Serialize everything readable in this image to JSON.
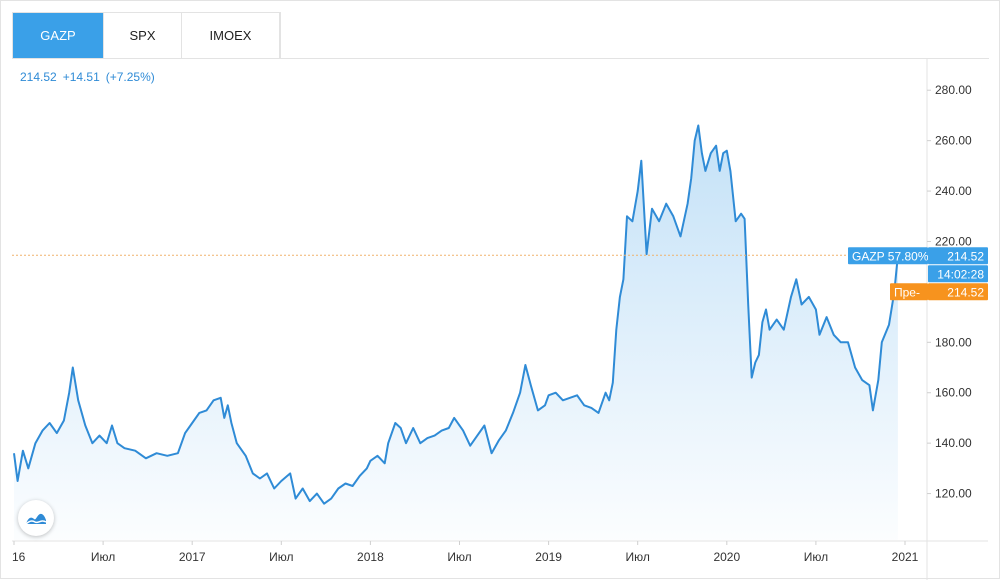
{
  "tabs": [
    {
      "label": "GAZP",
      "active": true
    },
    {
      "label": "SPX",
      "active": false
    },
    {
      "label": "IMOEX",
      "active": false
    }
  ],
  "header": {
    "price": "214.52",
    "change": "+14.51",
    "change_pct": "(+7.25%)"
  },
  "colors": {
    "accent": "#3aa0e8",
    "line": "#2f8bd6",
    "fill_top": "#b9dcf6",
    "orange": "#f7931e",
    "dotted_line": "#f0b26d"
  },
  "icons": {
    "logo": "tradingview-logo-icon"
  },
  "labels": {
    "series_badge": "GAZP 57.80%",
    "series_value": "214.52",
    "time_badge": "14:02:28",
    "pre_badge": "Пре-",
    "pre_value": "214.52"
  },
  "chart_data": {
    "type": "area",
    "title": "",
    "xlabel": "",
    "ylabel": "",
    "x_ticks": [
      "16",
      "Июл",
      "2017",
      "Июл",
      "2018",
      "Июл",
      "2019",
      "Июл",
      "2020",
      "Июл",
      "2021"
    ],
    "y_ticks": [
      "120.00",
      "140.00",
      "160.00",
      "180.00",
      "200.00",
      "220.00",
      "240.00",
      "260.00",
      "280.00"
    ],
    "ylim": [
      100,
      290
    ],
    "xlim": [
      "2016-01",
      "2021-01"
    ],
    "current_value": 214.52,
    "series": [
      {
        "values": [
          [
            2016.0,
            136
          ],
          [
            2016.02,
            125
          ],
          [
            2016.05,
            137
          ],
          [
            2016.08,
            130
          ],
          [
            2016.12,
            140
          ],
          [
            2016.16,
            145
          ],
          [
            2016.2,
            148
          ],
          [
            2016.24,
            144
          ],
          [
            2016.28,
            149
          ],
          [
            2016.31,
            160
          ],
          [
            2016.33,
            170
          ],
          [
            2016.36,
            157
          ],
          [
            2016.4,
            147
          ],
          [
            2016.44,
            140
          ],
          [
            2016.48,
            143
          ],
          [
            2016.52,
            140
          ],
          [
            2016.55,
            147
          ],
          [
            2016.58,
            140
          ],
          [
            2016.62,
            138
          ],
          [
            2016.68,
            137
          ],
          [
            2016.74,
            134
          ],
          [
            2016.8,
            136
          ],
          [
            2016.86,
            135
          ],
          [
            2016.92,
            136
          ],
          [
            2016.96,
            144
          ],
          [
            2017.0,
            148
          ],
          [
            2017.04,
            152
          ],
          [
            2017.08,
            153
          ],
          [
            2017.12,
            157
          ],
          [
            2017.16,
            158
          ],
          [
            2017.18,
            150
          ],
          [
            2017.2,
            155
          ],
          [
            2017.22,
            148
          ],
          [
            2017.25,
            140
          ],
          [
            2017.3,
            135
          ],
          [
            2017.34,
            128
          ],
          [
            2017.38,
            126
          ],
          [
            2017.42,
            128
          ],
          [
            2017.46,
            122
          ],
          [
            2017.5,
            125
          ],
          [
            2017.55,
            128
          ],
          [
            2017.58,
            118
          ],
          [
            2017.62,
            122
          ],
          [
            2017.66,
            117
          ],
          [
            2017.7,
            120
          ],
          [
            2017.74,
            116
          ],
          [
            2017.78,
            118
          ],
          [
            2017.82,
            122
          ],
          [
            2017.86,
            124
          ],
          [
            2017.9,
            123
          ],
          [
            2017.94,
            127
          ],
          [
            2017.98,
            130
          ],
          [
            2018.0,
            133
          ],
          [
            2018.04,
            135
          ],
          [
            2018.08,
            132
          ],
          [
            2018.1,
            140
          ],
          [
            2018.14,
            148
          ],
          [
            2018.17,
            146
          ],
          [
            2018.2,
            140
          ],
          [
            2018.24,
            146
          ],
          [
            2018.28,
            140
          ],
          [
            2018.32,
            142
          ],
          [
            2018.36,
            143
          ],
          [
            2018.4,
            145
          ],
          [
            2018.44,
            146
          ],
          [
            2018.47,
            150
          ],
          [
            2018.52,
            145
          ],
          [
            2018.56,
            139
          ],
          [
            2018.6,
            143
          ],
          [
            2018.64,
            147
          ],
          [
            2018.68,
            136
          ],
          [
            2018.72,
            141
          ],
          [
            2018.76,
            145
          ],
          [
            2018.8,
            152
          ],
          [
            2018.84,
            160
          ],
          [
            2018.87,
            171
          ],
          [
            2018.9,
            163
          ],
          [
            2018.94,
            153
          ],
          [
            2018.98,
            155
          ],
          [
            2019.0,
            159
          ],
          [
            2019.04,
            160
          ],
          [
            2019.08,
            157
          ],
          [
            2019.12,
            158
          ],
          [
            2019.16,
            159
          ],
          [
            2019.2,
            155
          ],
          [
            2019.24,
            154
          ],
          [
            2019.28,
            152
          ],
          [
            2019.32,
            160
          ],
          [
            2019.34,
            157
          ],
          [
            2019.36,
            164
          ],
          [
            2019.38,
            185
          ],
          [
            2019.4,
            198
          ],
          [
            2019.42,
            205
          ],
          [
            2019.44,
            230
          ],
          [
            2019.47,
            228
          ],
          [
            2019.5,
            240
          ],
          [
            2019.52,
            252
          ],
          [
            2019.55,
            215
          ],
          [
            2019.58,
            233
          ],
          [
            2019.62,
            228
          ],
          [
            2019.66,
            235
          ],
          [
            2019.7,
            230
          ],
          [
            2019.74,
            222
          ],
          [
            2019.78,
            235
          ],
          [
            2019.8,
            245
          ],
          [
            2019.82,
            260
          ],
          [
            2019.84,
            266
          ],
          [
            2019.86,
            255
          ],
          [
            2019.88,
            248
          ],
          [
            2019.91,
            255
          ],
          [
            2019.94,
            258
          ],
          [
            2019.96,
            248
          ],
          [
            2019.98,
            255
          ],
          [
            2020.0,
            256
          ],
          [
            2020.02,
            248
          ],
          [
            2020.05,
            228
          ],
          [
            2020.08,
            231
          ],
          [
            2020.1,
            229
          ],
          [
            2020.12,
            195
          ],
          [
            2020.14,
            166
          ],
          [
            2020.16,
            172
          ],
          [
            2020.18,
            175
          ],
          [
            2020.2,
            188
          ],
          [
            2020.22,
            193
          ],
          [
            2020.24,
            185
          ],
          [
            2020.28,
            189
          ],
          [
            2020.32,
            185
          ],
          [
            2020.36,
            198
          ],
          [
            2020.39,
            205
          ],
          [
            2020.42,
            195
          ],
          [
            2020.46,
            198
          ],
          [
            2020.5,
            193
          ],
          [
            2020.52,
            183
          ],
          [
            2020.56,
            190
          ],
          [
            2020.6,
            183
          ],
          [
            2020.64,
            180
          ],
          [
            2020.68,
            180
          ],
          [
            2020.72,
            170
          ],
          [
            2020.76,
            165
          ],
          [
            2020.8,
            163
          ],
          [
            2020.82,
            153
          ],
          [
            2020.85,
            165
          ],
          [
            2020.87,
            180
          ],
          [
            2020.91,
            187
          ],
          [
            2020.94,
            200
          ],
          [
            2020.96,
            214.52
          ]
        ]
      }
    ]
  }
}
